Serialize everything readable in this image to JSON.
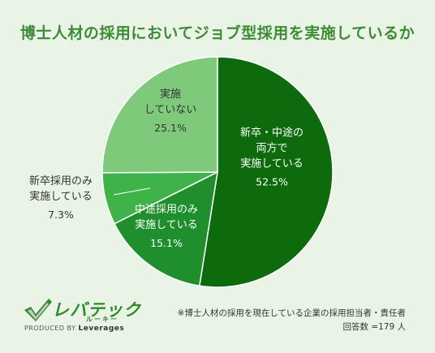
{
  "chart_data": {
    "type": "pie",
    "title": "博士人材の採用においてジョブ型採用を実施しているか",
    "slices": [
      {
        "label": "新卒・中途の両方で実施している",
        "lines": [
          "新卒・中途の",
          "両方で",
          "実施している"
        ],
        "value": 52.5,
        "value_label": "52.5%",
        "color": "#0d6b0d"
      },
      {
        "label": "中途採用のみ実施している",
        "lines": [
          "中途採用のみ",
          "実施している"
        ],
        "value": 15.1,
        "value_label": "15.1%",
        "color": "#1e8f2c"
      },
      {
        "label": "新卒採用のみ実施している",
        "lines": [
          "新卒採用のみ",
          "実施している"
        ],
        "value": 7.3,
        "value_label": "7.3%",
        "color": "#3fb34a"
      },
      {
        "label": "実施していない",
        "lines": [
          "実施",
          "していない"
        ],
        "value": 25.1,
        "value_label": "25.1%",
        "color": "#7fca7a"
      }
    ]
  },
  "logo": {
    "main": "レバテック",
    "sub": "ルーキー",
    "produced_by": "PRODUCED BY",
    "brand": "Leverages"
  },
  "note": {
    "line1": "※博士人材の採用を現在している企業の採用担当者・責任者",
    "line2": "回答数 =179 人"
  }
}
